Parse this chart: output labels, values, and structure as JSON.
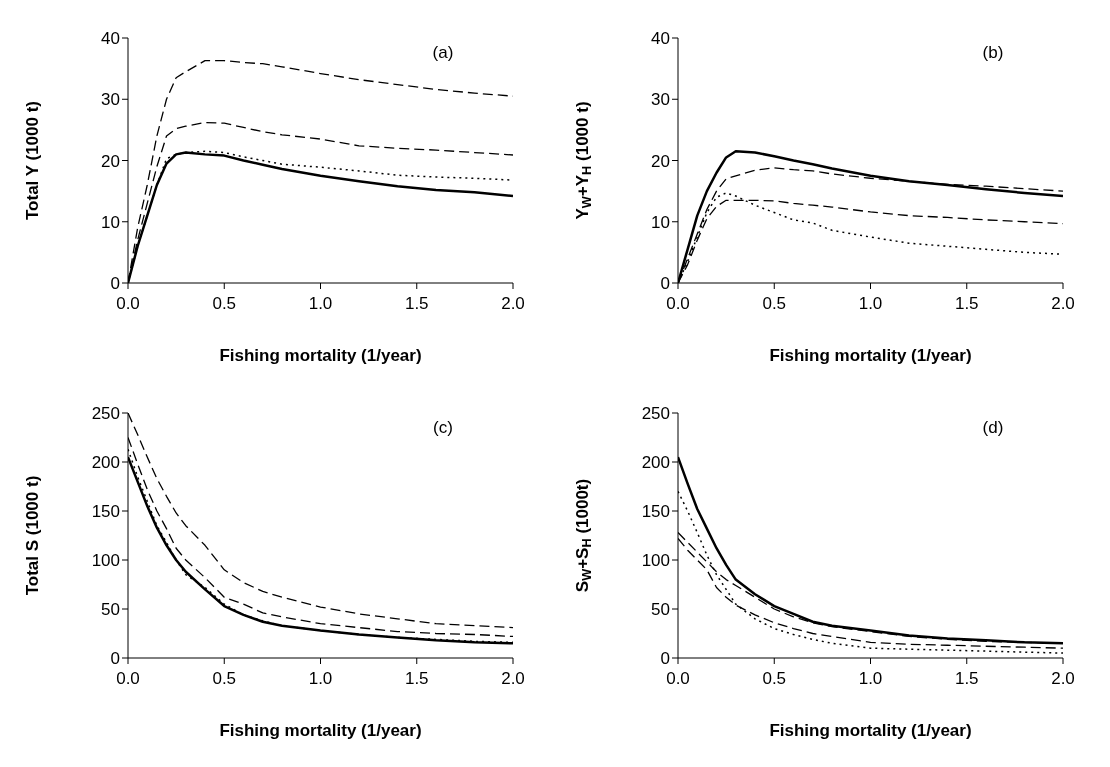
{
  "chart_data": [
    {
      "type": "line",
      "annotations": [
        "(a)"
      ],
      "xlabel": "Fishing mortality (1/year)",
      "ylabel": "Total Y (1000 t)",
      "x": [
        0,
        0.05,
        0.1,
        0.15,
        0.2,
        0.25,
        0.3,
        0.4,
        0.5,
        0.6,
        0.7,
        0.8,
        1.0,
        1.2,
        1.4,
        1.6,
        1.8,
        2.0
      ],
      "xlim": [
        0,
        2
      ],
      "xticks": [
        {
          "value": 0,
          "label": "0.0"
        },
        {
          "value": 0.5,
          "label": "0.5"
        },
        {
          "value": 1,
          "label": "1.0"
        },
        {
          "value": 1.5,
          "label": "1.5"
        },
        {
          "value": 2,
          "label": "2.0"
        }
      ],
      "ylim": [
        0,
        40
      ],
      "yticks": [
        0,
        10,
        20,
        30,
        40
      ],
      "grid": false,
      "legend": false,
      "series": [
        {
          "color": "#000000",
          "line_style": "solid",
          "values": [
            0,
            6,
            11,
            16,
            19.5,
            21,
            21.3,
            21,
            20.8,
            20,
            19.3,
            18.6,
            17.5,
            16.6,
            15.8,
            15.2,
            14.8,
            14.2
          ]
        },
        {
          "color": "#000000",
          "line_style": "dashed",
          "values": [
            0,
            9,
            16,
            24,
            30,
            33.5,
            34.5,
            36.3,
            36.3,
            36,
            35.8,
            35.3,
            34.2,
            33.2,
            32.4,
            31.6,
            31,
            30.5
          ]
        },
        {
          "color": "#000000",
          "line_style": "dashed",
          "values": [
            0,
            7,
            13,
            19,
            24,
            25.2,
            25.6,
            26.2,
            26.1,
            25.4,
            24.7,
            24.2,
            23.5,
            22.4,
            22,
            21.7,
            21.3,
            20.9
          ]
        },
        {
          "color": "#000000",
          "line_style": "dotted",
          "values": [
            0,
            6,
            11,
            16,
            20.3,
            21,
            21.3,
            21.5,
            21.3,
            20.6,
            20,
            19.4,
            18.9,
            18.3,
            17.6,
            17.3,
            17.1,
            16.8
          ]
        }
      ]
    },
    {
      "type": "line",
      "annotations": [
        "(b)"
      ],
      "xlabel": "Fishing mortality (1/year)",
      "ylabel": "Y$_{W}$+Y$_{H}$ (1000 t)",
      "x": [
        0,
        0.05,
        0.1,
        0.15,
        0.2,
        0.25,
        0.3,
        0.4,
        0.5,
        0.6,
        0.7,
        0.8,
        1.0,
        1.2,
        1.4,
        1.6,
        1.8,
        2.0
      ],
      "xlim": [
        0,
        2
      ],
      "xticks": [
        {
          "value": 0,
          "label": "0.0"
        },
        {
          "value": 0.5,
          "label": "0.5"
        },
        {
          "value": 1,
          "label": "1.0"
        },
        {
          "value": 1.5,
          "label": "1.5"
        },
        {
          "value": 2,
          "label": "2.0"
        }
      ],
      "ylim": [
        0,
        40
      ],
      "yticks": [
        0,
        10,
        20,
        30,
        40
      ],
      "grid": false,
      "legend": false,
      "series": [
        {
          "color": "#000000",
          "line_style": "solid",
          "values": [
            0,
            5.5,
            11,
            15,
            18,
            20.5,
            21.5,
            21.3,
            20.7,
            20,
            19.4,
            18.7,
            17.5,
            16.6,
            16,
            15.3,
            14.7,
            14.2
          ]
        },
        {
          "color": "#000000",
          "line_style": "dashed",
          "values": [
            0,
            4,
            8,
            12,
            15,
            17,
            17.5,
            18.4,
            18.8,
            18.5,
            18.3,
            17.8,
            17.1,
            16.6,
            16.1,
            15.8,
            15.4,
            15
          ]
        },
        {
          "color": "#000000",
          "line_style": "dashed",
          "values": [
            0,
            3,
            7,
            10.5,
            12.5,
            13.5,
            13.5,
            13.5,
            13.4,
            13,
            12.7,
            12.4,
            11.6,
            11,
            10.7,
            10.3,
            10,
            9.7
          ]
        },
        {
          "color": "#000000",
          "line_style": "dotted",
          "values": [
            0,
            3.5,
            7.5,
            11.5,
            14,
            14.7,
            14.2,
            12.7,
            11.5,
            10.3,
            9.8,
            8.6,
            7.5,
            6.5,
            6,
            5.5,
            5,
            4.7
          ]
        }
      ]
    },
    {
      "type": "line",
      "annotations": [
        "(c)"
      ],
      "xlabel": "Fishing mortality (1/year)",
      "ylabel": "Total S (1000 t)",
      "x": [
        0,
        0.05,
        0.1,
        0.15,
        0.2,
        0.25,
        0.3,
        0.4,
        0.5,
        0.6,
        0.7,
        0.8,
        1.0,
        1.2,
        1.4,
        1.6,
        1.8,
        2.0
      ],
      "xlim": [
        0,
        2
      ],
      "xticks": [
        {
          "value": 0,
          "label": "0.0"
        },
        {
          "value": 0.5,
          "label": "0.5"
        },
        {
          "value": 1,
          "label": "1.0"
        },
        {
          "value": 1.5,
          "label": "1.5"
        },
        {
          "value": 2,
          "label": "2.0"
        }
      ],
      "ylim": [
        0,
        250
      ],
      "yticks": [
        0,
        50,
        100,
        150,
        200,
        250
      ],
      "grid": false,
      "legend": false,
      "series": [
        {
          "color": "#000000",
          "line_style": "solid",
          "values": [
            205,
            180,
            155,
            133,
            115,
            100,
            88,
            70,
            53,
            44,
            37,
            33,
            28,
            24,
            21,
            18,
            16,
            15
          ]
        },
        {
          "color": "#000000",
          "line_style": "dashed",
          "values": [
            250,
            228,
            205,
            183,
            165,
            148,
            135,
            115,
            90,
            77,
            68,
            62,
            52,
            45,
            40,
            35,
            33,
            31
          ]
        },
        {
          "color": "#000000",
          "line_style": "dashed",
          "values": [
            225,
            198,
            172,
            150,
            132,
            112,
            100,
            82,
            62,
            55,
            46,
            42,
            35,
            31,
            27,
            25,
            24,
            22
          ]
        },
        {
          "color": "#000000",
          "line_style": "dotted",
          "values": [
            213,
            185,
            160,
            135,
            118,
            100,
            85,
            72,
            55,
            44,
            38,
            33,
            28,
            24,
            21,
            19,
            17,
            16
          ]
        }
      ]
    },
    {
      "type": "line",
      "annotations": [
        "(d)"
      ],
      "xlabel": "Fishing mortality (1/year)",
      "ylabel": "S$_{W}$+S$_{H}$ (1000t)",
      "x": [
        0,
        0.05,
        0.1,
        0.15,
        0.2,
        0.25,
        0.3,
        0.4,
        0.5,
        0.6,
        0.7,
        0.8,
        1.0,
        1.2,
        1.4,
        1.6,
        1.8,
        2.0
      ],
      "xlim": [
        0,
        2
      ],
      "xticks": [
        {
          "value": 0,
          "label": "0.0"
        },
        {
          "value": 0.5,
          "label": "0.5"
        },
        {
          "value": 1,
          "label": "1.0"
        },
        {
          "value": 1.5,
          "label": "1.5"
        },
        {
          "value": 2,
          "label": "2.0"
        }
      ],
      "ylim": [
        0,
        250
      ],
      "yticks": [
        0,
        50,
        100,
        150,
        200,
        250
      ],
      "grid": false,
      "legend": false,
      "series": [
        {
          "color": "#000000",
          "line_style": "solid",
          "values": [
            205,
            178,
            152,
            132,
            112,
            95,
            80,
            65,
            53,
            45,
            37,
            33,
            28,
            23,
            20,
            18,
            16,
            15
          ]
        },
        {
          "color": "#000000",
          "line_style": "dashed",
          "values": [
            128,
            118,
            108,
            98,
            88,
            80,
            74,
            62,
            50,
            42,
            36,
            32,
            27,
            22,
            19,
            17,
            16,
            15
          ]
        },
        {
          "color": "#000000",
          "line_style": "dashed",
          "values": [
            122,
            110,
            100,
            90,
            72,
            62,
            54,
            44,
            36,
            30,
            25,
            22,
            16,
            14,
            13,
            12,
            11,
            10
          ]
        },
        {
          "color": "#000000",
          "line_style": "dotted",
          "values": [
            170,
            150,
            128,
            105,
            85,
            70,
            55,
            40,
            30,
            24,
            19,
            15,
            10,
            9,
            8,
            7,
            6,
            5
          ]
        }
      ]
    }
  ]
}
